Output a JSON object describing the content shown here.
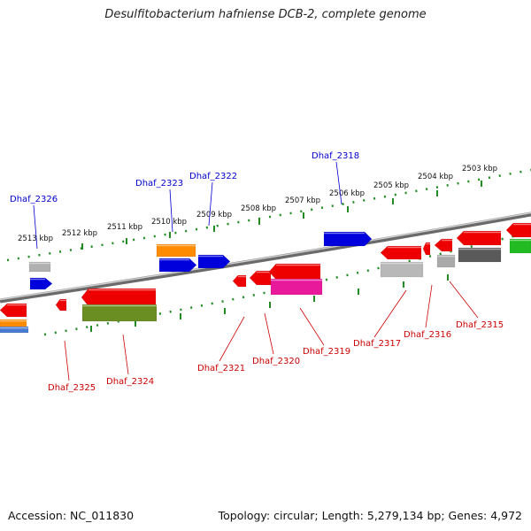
{
  "title": "Desulfitobacterium hafniense DCB-2, complete genome",
  "accession": "Accession: NC_011830",
  "summary": "Topology: circular; Length: 5,279,134 bp; Genes: 4,972",
  "colors": {
    "forward_label": "#0000cc",
    "reverse_label": "#cc0000",
    "tick": "#228b22",
    "backbone": "#8c8c8c"
  },
  "kbp_ticks": [
    {
      "label": "2513 kbp"
    },
    {
      "label": "2512 kbp"
    },
    {
      "label": "2511 kbp"
    },
    {
      "label": "2510 kbp"
    },
    {
      "label": "2509 kbp"
    },
    {
      "label": "2508 kbp"
    },
    {
      "label": "2507 kbp"
    },
    {
      "label": "2506 kbp"
    },
    {
      "label": "2505 kbp"
    },
    {
      "label": "2504 kbp"
    },
    {
      "label": "2503 kbp"
    }
  ],
  "forward_labels": [
    {
      "name": "Dhaf_2326"
    },
    {
      "name": "Dhaf_2323"
    },
    {
      "name": "Dhaf_2322"
    },
    {
      "name": "Dhaf_2318"
    }
  ],
  "reverse_labels": [
    {
      "name": "Dhaf_2325"
    },
    {
      "name": "Dhaf_2324"
    },
    {
      "name": "Dhaf_2321"
    },
    {
      "name": "Dhaf_2320"
    },
    {
      "name": "Dhaf_2319"
    },
    {
      "name": "Dhaf_2317"
    },
    {
      "name": "Dhaf_2316"
    },
    {
      "name": "Dhaf_2315"
    }
  ]
}
